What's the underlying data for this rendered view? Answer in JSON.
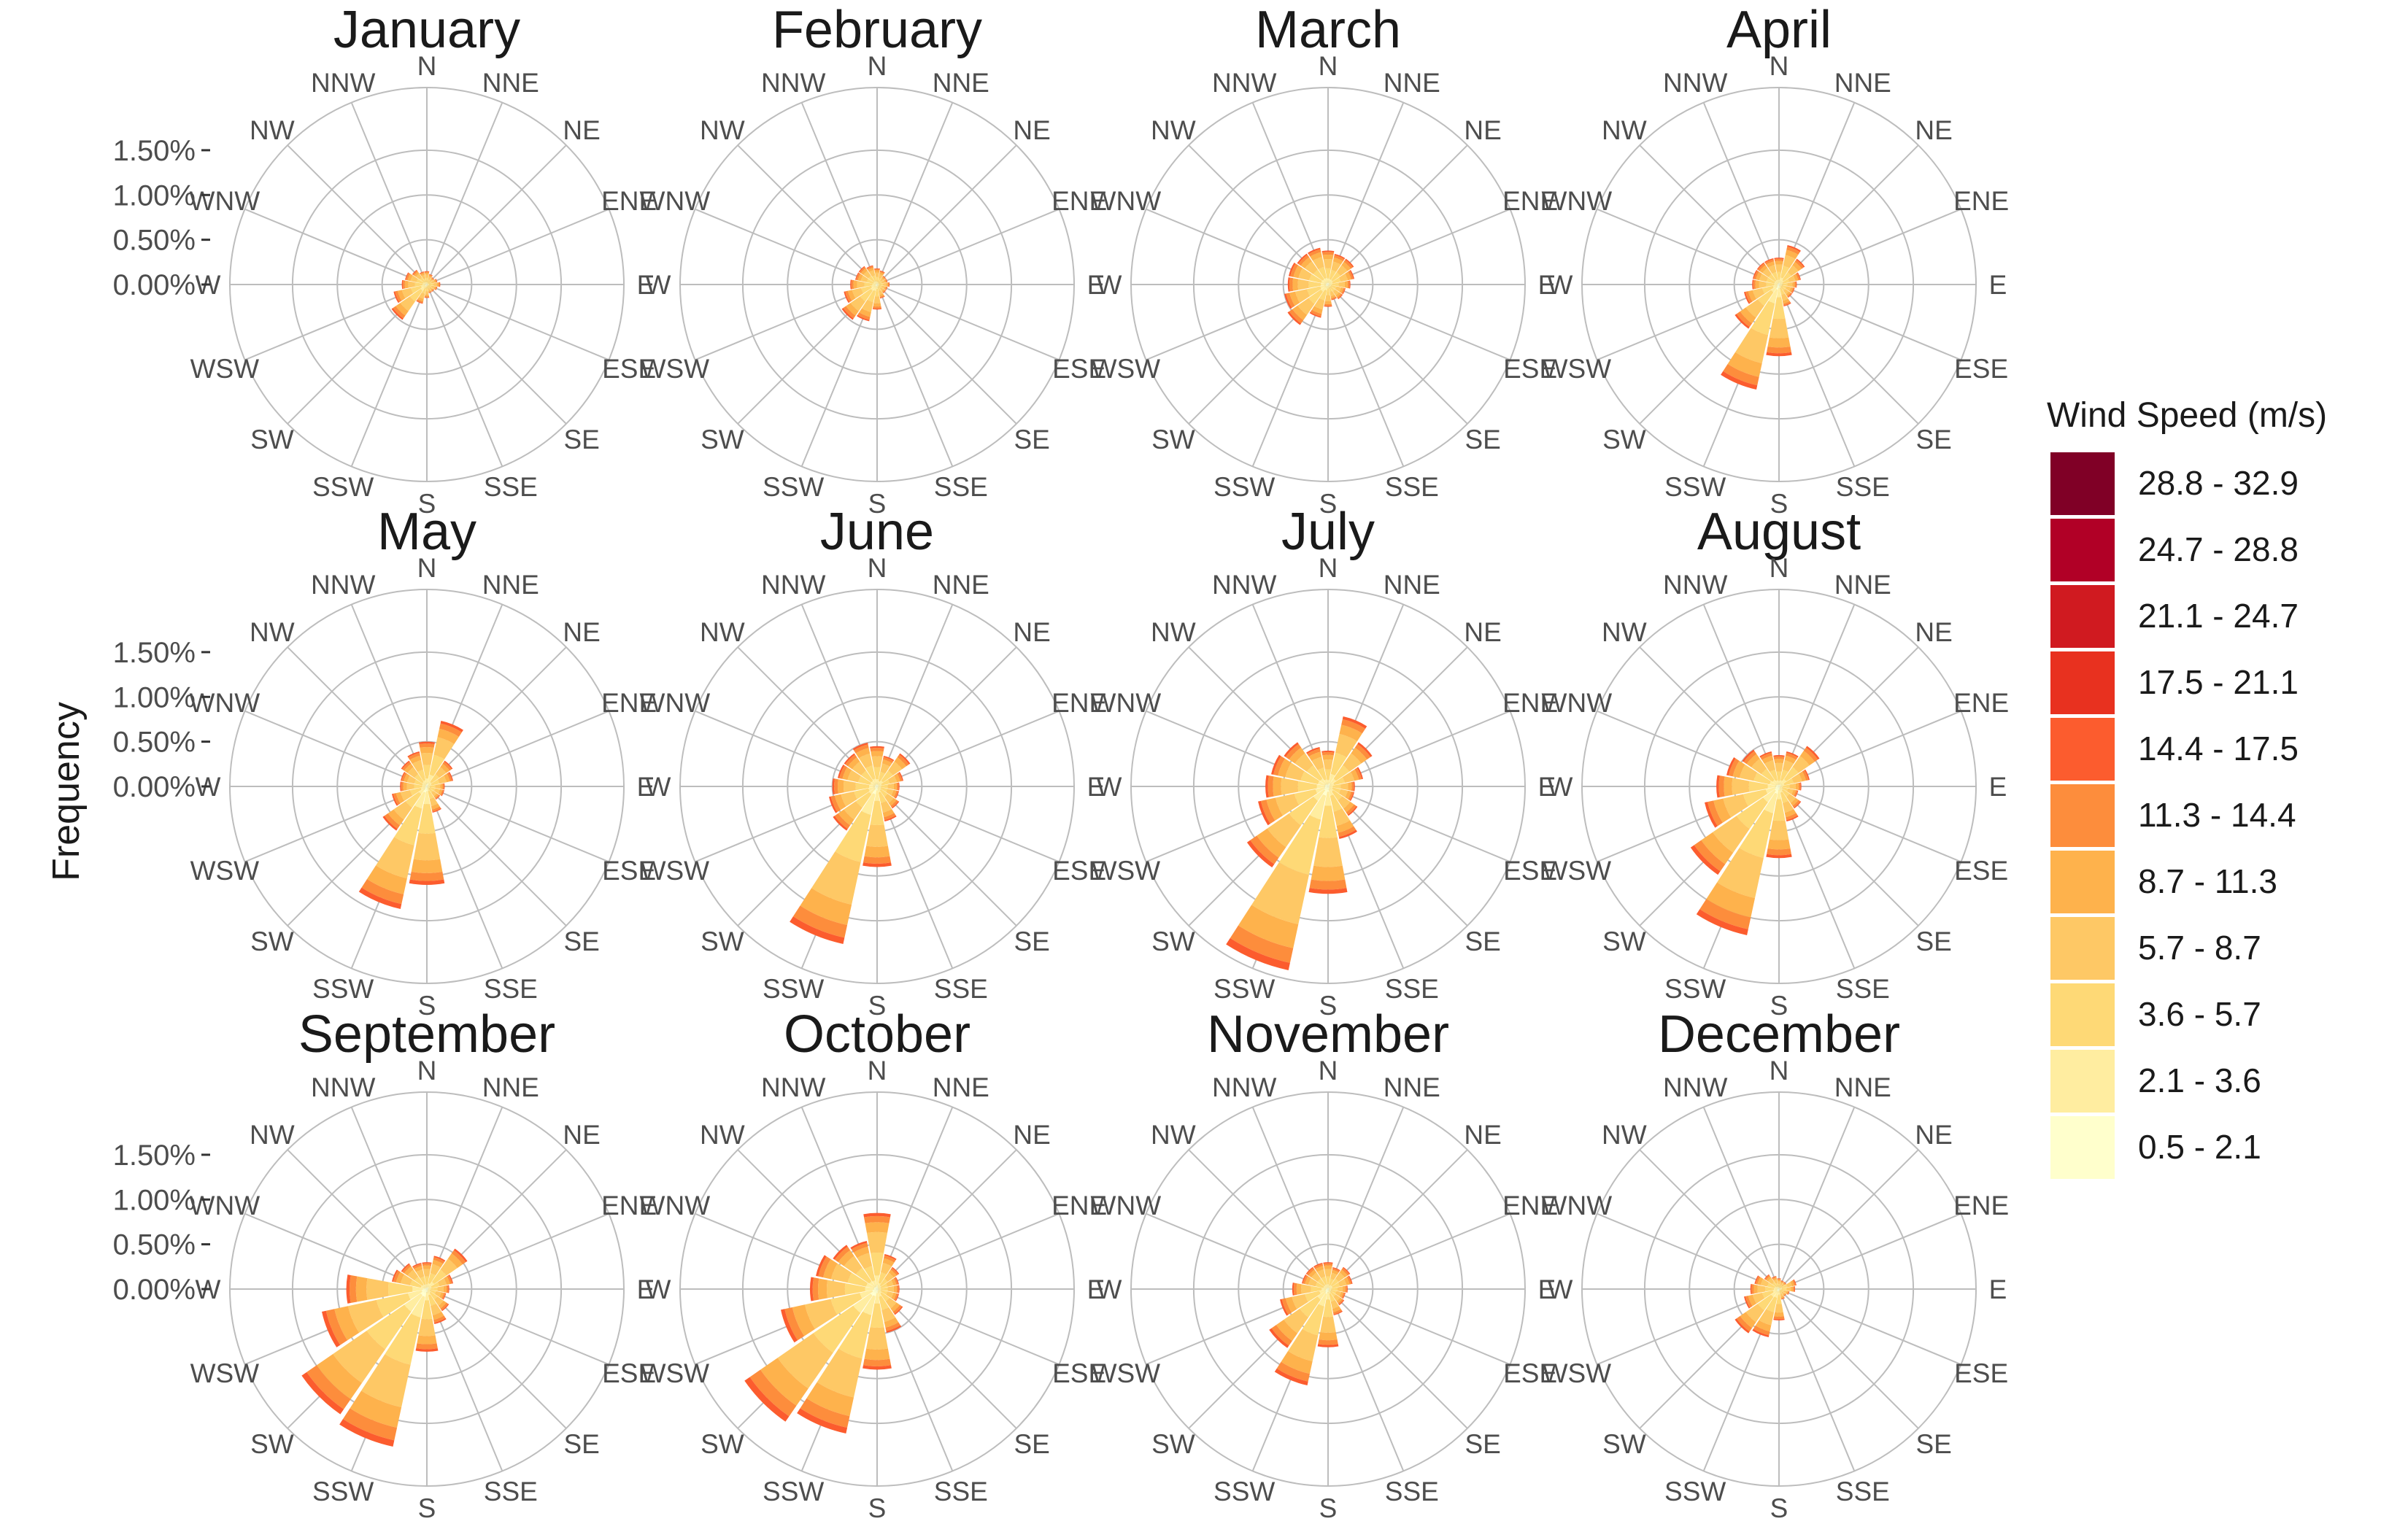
{
  "chart_data": {
    "type": "polar-stacked-bar",
    "ylabel": "Frequency",
    "r_ticks": [
      0,
      0.5,
      1.0,
      1.5
    ],
    "r_tick_labels": [
      "0.00%",
      "0.50%",
      "1.00%",
      "1.50%"
    ],
    "r_max": 2.2,
    "directions": [
      "N",
      "NNE",
      "NE",
      "ENE",
      "E",
      "ESE",
      "SE",
      "SSE",
      "S",
      "SSW",
      "SW",
      "WSW",
      "W",
      "WNW",
      "NW",
      "NNW"
    ],
    "legend": {
      "title": "Wind Speed (m/s)",
      "bins": [
        "0.5 - 2.1",
        "2.1 - 3.6",
        "3.6 - 5.7",
        "5.7 - 8.7",
        "8.7 - 11.3",
        "11.3 - 14.4",
        "14.4 - 17.5",
        "17.5 - 21.1",
        "21.1 - 24.7",
        "24.7 - 28.8",
        "28.8 - 32.9"
      ],
      "colors": [
        "#ffffcc",
        "#ffeda0",
        "#fed976",
        "#fec865",
        "#feb24c",
        "#fd8d3c",
        "#fc5c2e",
        "#e8311f",
        "#d01a20",
        "#b10026",
        "#800026"
      ]
    },
    "months": [
      {
        "name": "January",
        "totals": [
          0.15,
          0.12,
          0.1,
          0.12,
          0.15,
          0.12,
          0.1,
          0.1,
          0.15,
          0.22,
          0.48,
          0.38,
          0.28,
          0.25,
          0.2,
          0.15
        ]
      },
      {
        "name": "February",
        "totals": [
          0.18,
          0.16,
          0.12,
          0.12,
          0.14,
          0.12,
          0.12,
          0.16,
          0.28,
          0.42,
          0.48,
          0.38,
          0.3,
          0.25,
          0.25,
          0.22
        ]
      },
      {
        "name": "March",
        "totals": [
          0.38,
          0.35,
          0.35,
          0.3,
          0.25,
          0.2,
          0.2,
          0.18,
          0.25,
          0.38,
          0.55,
          0.5,
          0.45,
          0.45,
          0.42,
          0.42
        ]
      },
      {
        "name": "April",
        "totals": [
          0.3,
          0.45,
          0.35,
          0.25,
          0.2,
          0.18,
          0.18,
          0.25,
          0.8,
          1.2,
          0.6,
          0.4,
          0.3,
          0.3,
          0.3,
          0.3
        ]
      },
      {
        "name": "May",
        "totals": [
          0.5,
          0.75,
          0.35,
          0.3,
          0.2,
          0.2,
          0.18,
          0.3,
          1.1,
          1.4,
          0.6,
          0.4,
          0.3,
          0.3,
          0.35,
          0.4
        ]
      },
      {
        "name": "June",
        "totals": [
          0.45,
          0.35,
          0.45,
          0.3,
          0.25,
          0.25,
          0.3,
          0.4,
          0.9,
          1.8,
          0.6,
          0.55,
          0.5,
          0.45,
          0.45,
          0.5
        ]
      },
      {
        "name": "July",
        "totals": [
          0.4,
          0.8,
          0.6,
          0.4,
          0.3,
          0.3,
          0.4,
          0.6,
          1.2,
          2.1,
          1.1,
          0.8,
          0.7,
          0.65,
          0.6,
          0.45
        ]
      },
      {
        "name": "August",
        "totals": [
          0.35,
          0.4,
          0.55,
          0.35,
          0.25,
          0.22,
          0.3,
          0.4,
          0.8,
          1.7,
          1.2,
          0.85,
          0.7,
          0.6,
          0.5,
          0.4
        ]
      },
      {
        "name": "September",
        "totals": [
          0.3,
          0.38,
          0.55,
          0.3,
          0.25,
          0.22,
          0.3,
          0.4,
          0.7,
          1.8,
          1.7,
          1.2,
          0.9,
          0.4,
          0.35,
          0.3
        ]
      },
      {
        "name": "October",
        "totals": [
          0.85,
          0.4,
          0.3,
          0.25,
          0.25,
          0.25,
          0.35,
          0.5,
          0.9,
          1.65,
          1.8,
          1.1,
          0.75,
          0.7,
          0.6,
          0.55
        ]
      },
      {
        "name": "November",
        "totals": [
          0.3,
          0.25,
          0.3,
          0.28,
          0.22,
          0.2,
          0.22,
          0.3,
          0.65,
          1.1,
          0.8,
          0.55,
          0.4,
          0.3,
          0.3,
          0.3
        ]
      },
      {
        "name": "December",
        "totals": [
          0.12,
          0.1,
          0.1,
          0.2,
          0.18,
          0.12,
          0.1,
          0.12,
          0.35,
          0.55,
          0.6,
          0.4,
          0.32,
          0.28,
          0.2,
          0.15
        ]
      }
    ]
  }
}
